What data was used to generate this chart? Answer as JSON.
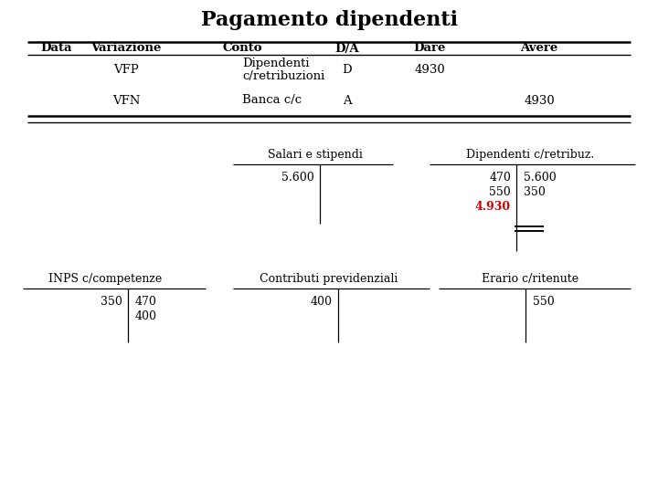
{
  "title": "Pagamento dipendenti",
  "title_fontsize": 16,
  "bg_color": "#ffffff",
  "text_color": "#000000",
  "red_color": "#cc0000",
  "header_row": [
    "Data",
    "Variazione",
    "Conto",
    "D/A",
    "Dare",
    "Avere"
  ],
  "row1_variazione": "VFP",
  "row1_conto_line1": "Dipendenti",
  "row1_conto_line2": "c/retribuzioni",
  "row1_da": "D",
  "row1_dare": "4930",
  "row2_variazione": "VFN",
  "row2_conto": "Banca c/c",
  "row2_da": "A",
  "row2_avere": "4930",
  "ledger1_title": "Salari e stipendi",
  "ledger1_dare": [
    "5.600"
  ],
  "ledger1_avere": [],
  "ledger2_title": "Dipendenti c/retribuz.",
  "ledger2_dare": [
    "470",
    "550",
    "4.930"
  ],
  "ledger2_avere": [
    "5.600",
    "350"
  ],
  "ledger2_dare_red": [
    2
  ],
  "ledger3_title": "INPS c/competenze",
  "ledger3_dare": [
    "350"
  ],
  "ledger3_avere": [
    "470",
    "400"
  ],
  "ledger4_title": "Contributi previdenziali",
  "ledger4_dare": [
    "400"
  ],
  "ledger4_avere": [],
  "ledger5_title": "Erario c/ritenute",
  "ledger5_dare": [],
  "ledger5_avere": [
    "550"
  ]
}
